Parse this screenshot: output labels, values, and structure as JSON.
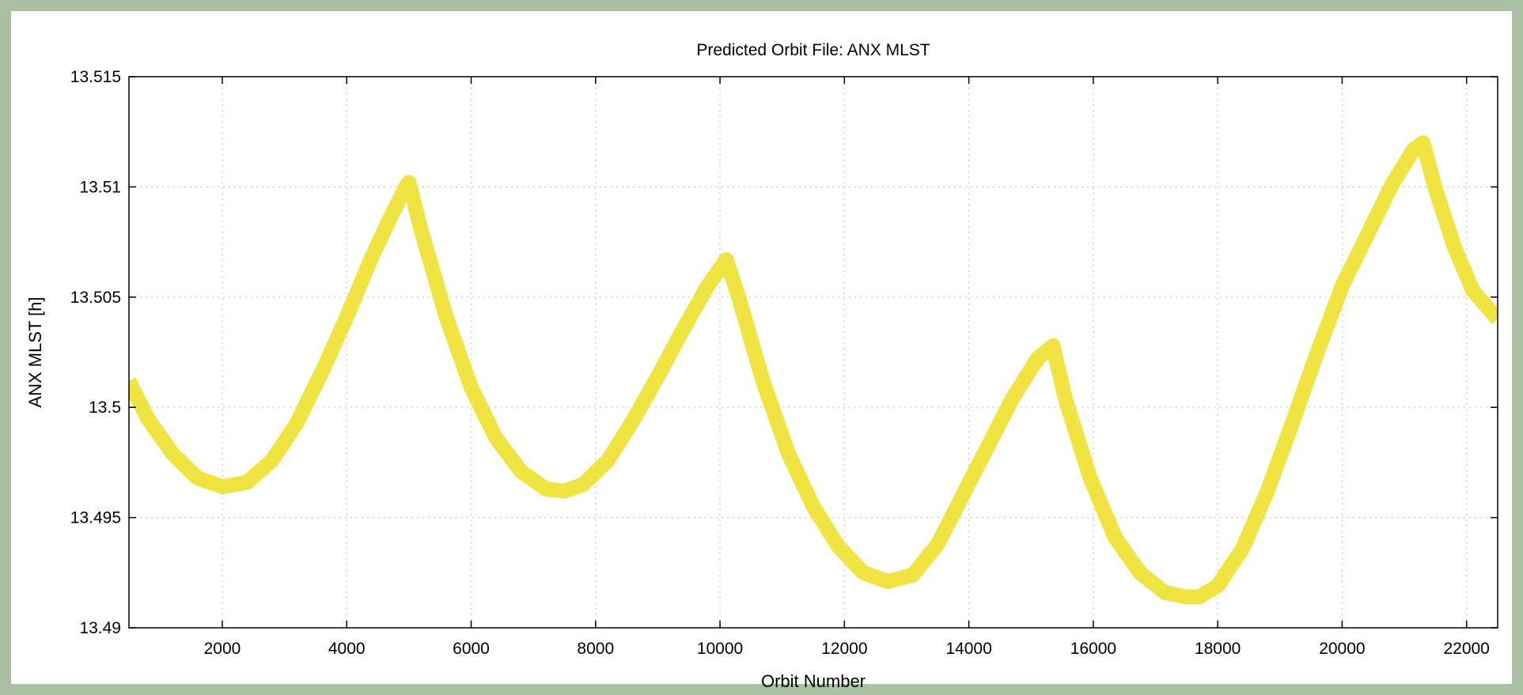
{
  "colors": {
    "frame_border": "#a9c0a3",
    "series_line": "#f0e442",
    "grid": "#c8c8c8",
    "axis": "#000000"
  },
  "chart_data": {
    "type": "line",
    "title": "Predicted Orbit File: ANX MLST",
    "xlabel": "Orbit Number",
    "ylabel": "ANX MLST [h]",
    "xlim": [
      500,
      22500
    ],
    "ylim": [
      13.49,
      13.515
    ],
    "x_ticks": [
      2000,
      4000,
      6000,
      8000,
      10000,
      12000,
      14000,
      16000,
      18000,
      20000,
      22000
    ],
    "x_tick_labels": [
      "2000",
      "4000",
      "6000",
      "8000",
      "10000",
      "12000",
      "14000",
      "16000",
      "18000",
      "20000",
      "22000"
    ],
    "y_ticks": [
      13.49,
      13.495,
      13.5,
      13.505,
      13.51,
      13.515
    ],
    "y_tick_labels": [
      "13.49",
      "13.495",
      "13.5",
      "13.505",
      "13.51",
      "13.515"
    ],
    "grid": true,
    "series": [
      {
        "x": [
          500,
          800,
          1200,
          1600,
          2000,
          2400,
          2800,
          3200,
          3600,
          4000,
          4400,
          4700,
          4950,
          5000,
          5200,
          5600,
          6000,
          6400,
          6800,
          7200,
          7500,
          7800,
          8200,
          8600,
          9000,
          9400,
          9800,
          10100,
          10300,
          10700,
          11100,
          11500,
          11900,
          12300,
          12700,
          13100,
          13500,
          13900,
          14300,
          14700,
          15100,
          15350,
          15550,
          15950,
          16350,
          16750,
          17150,
          17500,
          17700,
          18000,
          18400,
          18800,
          19200,
          19600,
          20000,
          20400,
          20800,
          21150,
          21300,
          21500,
          21800,
          22100,
          22500
        ],
        "y": [
          13.5012,
          13.4995,
          13.4979,
          13.4968,
          13.4964,
          13.4966,
          13.4976,
          13.4993,
          13.5016,
          13.5041,
          13.5068,
          13.5086,
          13.51,
          13.5102,
          13.508,
          13.5041,
          13.5009,
          13.4986,
          13.4971,
          13.4963,
          13.4962,
          13.4965,
          13.4976,
          13.4994,
          13.5014,
          13.5035,
          13.5055,
          13.5067,
          13.505,
          13.5011,
          13.4979,
          13.4955,
          13.4937,
          13.4925,
          13.4921,
          13.4924,
          13.4938,
          13.496,
          13.4982,
          13.5004,
          13.5022,
          13.5028,
          13.5004,
          13.4968,
          13.4941,
          13.4925,
          13.4916,
          13.4914,
          13.4914,
          13.4919,
          13.4936,
          13.4962,
          13.4993,
          13.5025,
          13.5055,
          13.5078,
          13.5101,
          13.5117,
          13.512,
          13.5099,
          13.5073,
          13.5053,
          13.504
        ]
      }
    ]
  }
}
